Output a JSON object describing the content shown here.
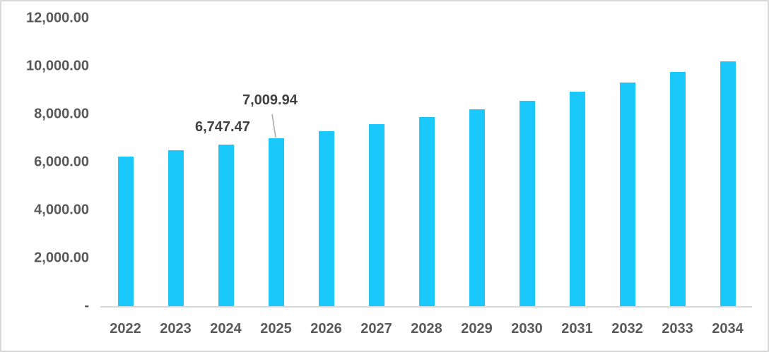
{
  "chart_data": {
    "type": "bar",
    "title": "",
    "xlabel": "",
    "ylabel": "",
    "categories": [
      "2022",
      "2023",
      "2024",
      "2025",
      "2026",
      "2027",
      "2028",
      "2029",
      "2030",
      "2031",
      "2032",
      "2033",
      "2034"
    ],
    "values": [
      6240,
      6490,
      6747.47,
      7009.94,
      7290,
      7590,
      7890,
      8210,
      8560,
      8940,
      9330,
      9770,
      10210
    ],
    "ylim": [
      0,
      12000
    ],
    "yticks": [
      0,
      2000,
      4000,
      6000,
      8000,
      10000,
      12000
    ],
    "ytick_labels": [
      "-",
      "2,000.00",
      "4,000.00",
      "6,000.00",
      "8,000.00",
      "10,000.00",
      "12,000.00"
    ],
    "grid": false,
    "legend": null,
    "bar_color": "#1BC8FC",
    "data_labels": [
      {
        "category": "2024",
        "text": "6,747.47"
      },
      {
        "category": "2025",
        "text": "7,009.94"
      }
    ]
  }
}
